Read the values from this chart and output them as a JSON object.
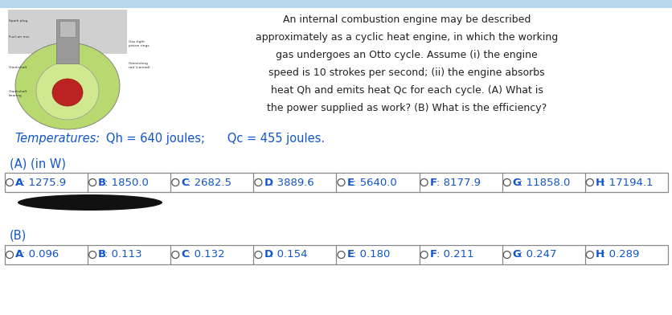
{
  "background_color": "#ffffff",
  "top_bar_color": "#b8d8f0",
  "paragraph_text_lines": [
    "An internal combustion engine may be described",
    "approximately as a cyclic heat engine, in which the working",
    "gas undergoes an Otto cycle. Assume (i) the engine",
    "speed is 10 strokes per second; (ii) the engine absorbs",
    "heat Qh and emits heat Qc for each cycle. (A) What is",
    "the power supplied as work? (B) What is the efficiency?"
  ],
  "temperatures_label": "Temperatures:",
  "temperatures_values": "   Qh = 640 joules;      Qc = 455 joules.",
  "section_a_label": "(A) (in W)",
  "section_b_label": "(B)",
  "options_a": [
    "A: 1275.9",
    "B: 1850.0",
    "C: 2682.5",
    "D: 3889.6",
    "E: 5640.0",
    "F: 8177.9",
    "G: 11858.0",
    "H: 17194.1"
  ],
  "options_b": [
    "A: 0.096",
    "B: 0.113",
    "C: 0.132",
    "D: 0.154",
    "E: 0.180",
    "F: 0.211",
    "G: 0.247",
    "H: 0.289"
  ],
  "text_color_blue": "#1155cc",
  "text_color_dark": "#222222",
  "box_border_color": "#888888",
  "circle_color": "#ffffff",
  "circle_edge_color": "#555555",
  "black_oval_color": "#111111",
  "font_size_paragraph": 9.0,
  "font_size_temperatures": 10.5,
  "font_size_section": 10.5,
  "font_size_options": 9.5,
  "fig_width": 8.37,
  "fig_height": 3.92,
  "dpi": 100
}
